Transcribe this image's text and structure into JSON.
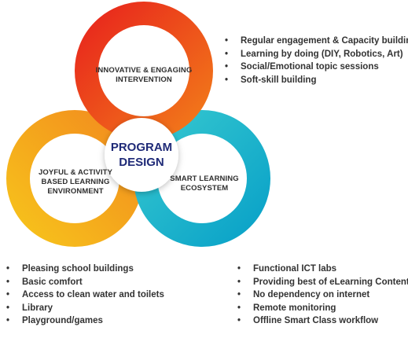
{
  "diagram": {
    "center": "PROGRAM\nDESIGN",
    "rings": [
      {
        "label": "INNOVATIVE & ENGAGING\nINTERVENTION",
        "color_start": "#e8261c",
        "color_end": "#f27a1a"
      },
      {
        "label": "JOYFUL & ACTIVITY\nBASED LEARNING\nENVIRONMENT",
        "color_start": "#f7c21b",
        "color_end": "#f28c1e"
      },
      {
        "label": "SMART LEARNING\nECOSYSTEM",
        "color_start": "#35c7cf",
        "color_end": "#0aa2c8"
      }
    ]
  },
  "bullets": {
    "top_right": [
      "Regular engagement & Capacity building",
      "Learning by doing (DIY, Robotics, Art)",
      "Social/Emotional topic sessions",
      "Soft-skill building"
    ],
    "bottom_left": [
      "Pleasing school buildings",
      "Basic comfort",
      "Access to clean water and toilets",
      "Library",
      "Playground/games"
    ],
    "bottom_right": [
      "Functional ICT labs",
      "Providing best of eLearning Content",
      "No dependency on internet",
      "Remote monitoring",
      "Offline Smart Class workflow"
    ]
  },
  "colors": {
    "center_text": "#1f2a77",
    "text": "#333333"
  }
}
